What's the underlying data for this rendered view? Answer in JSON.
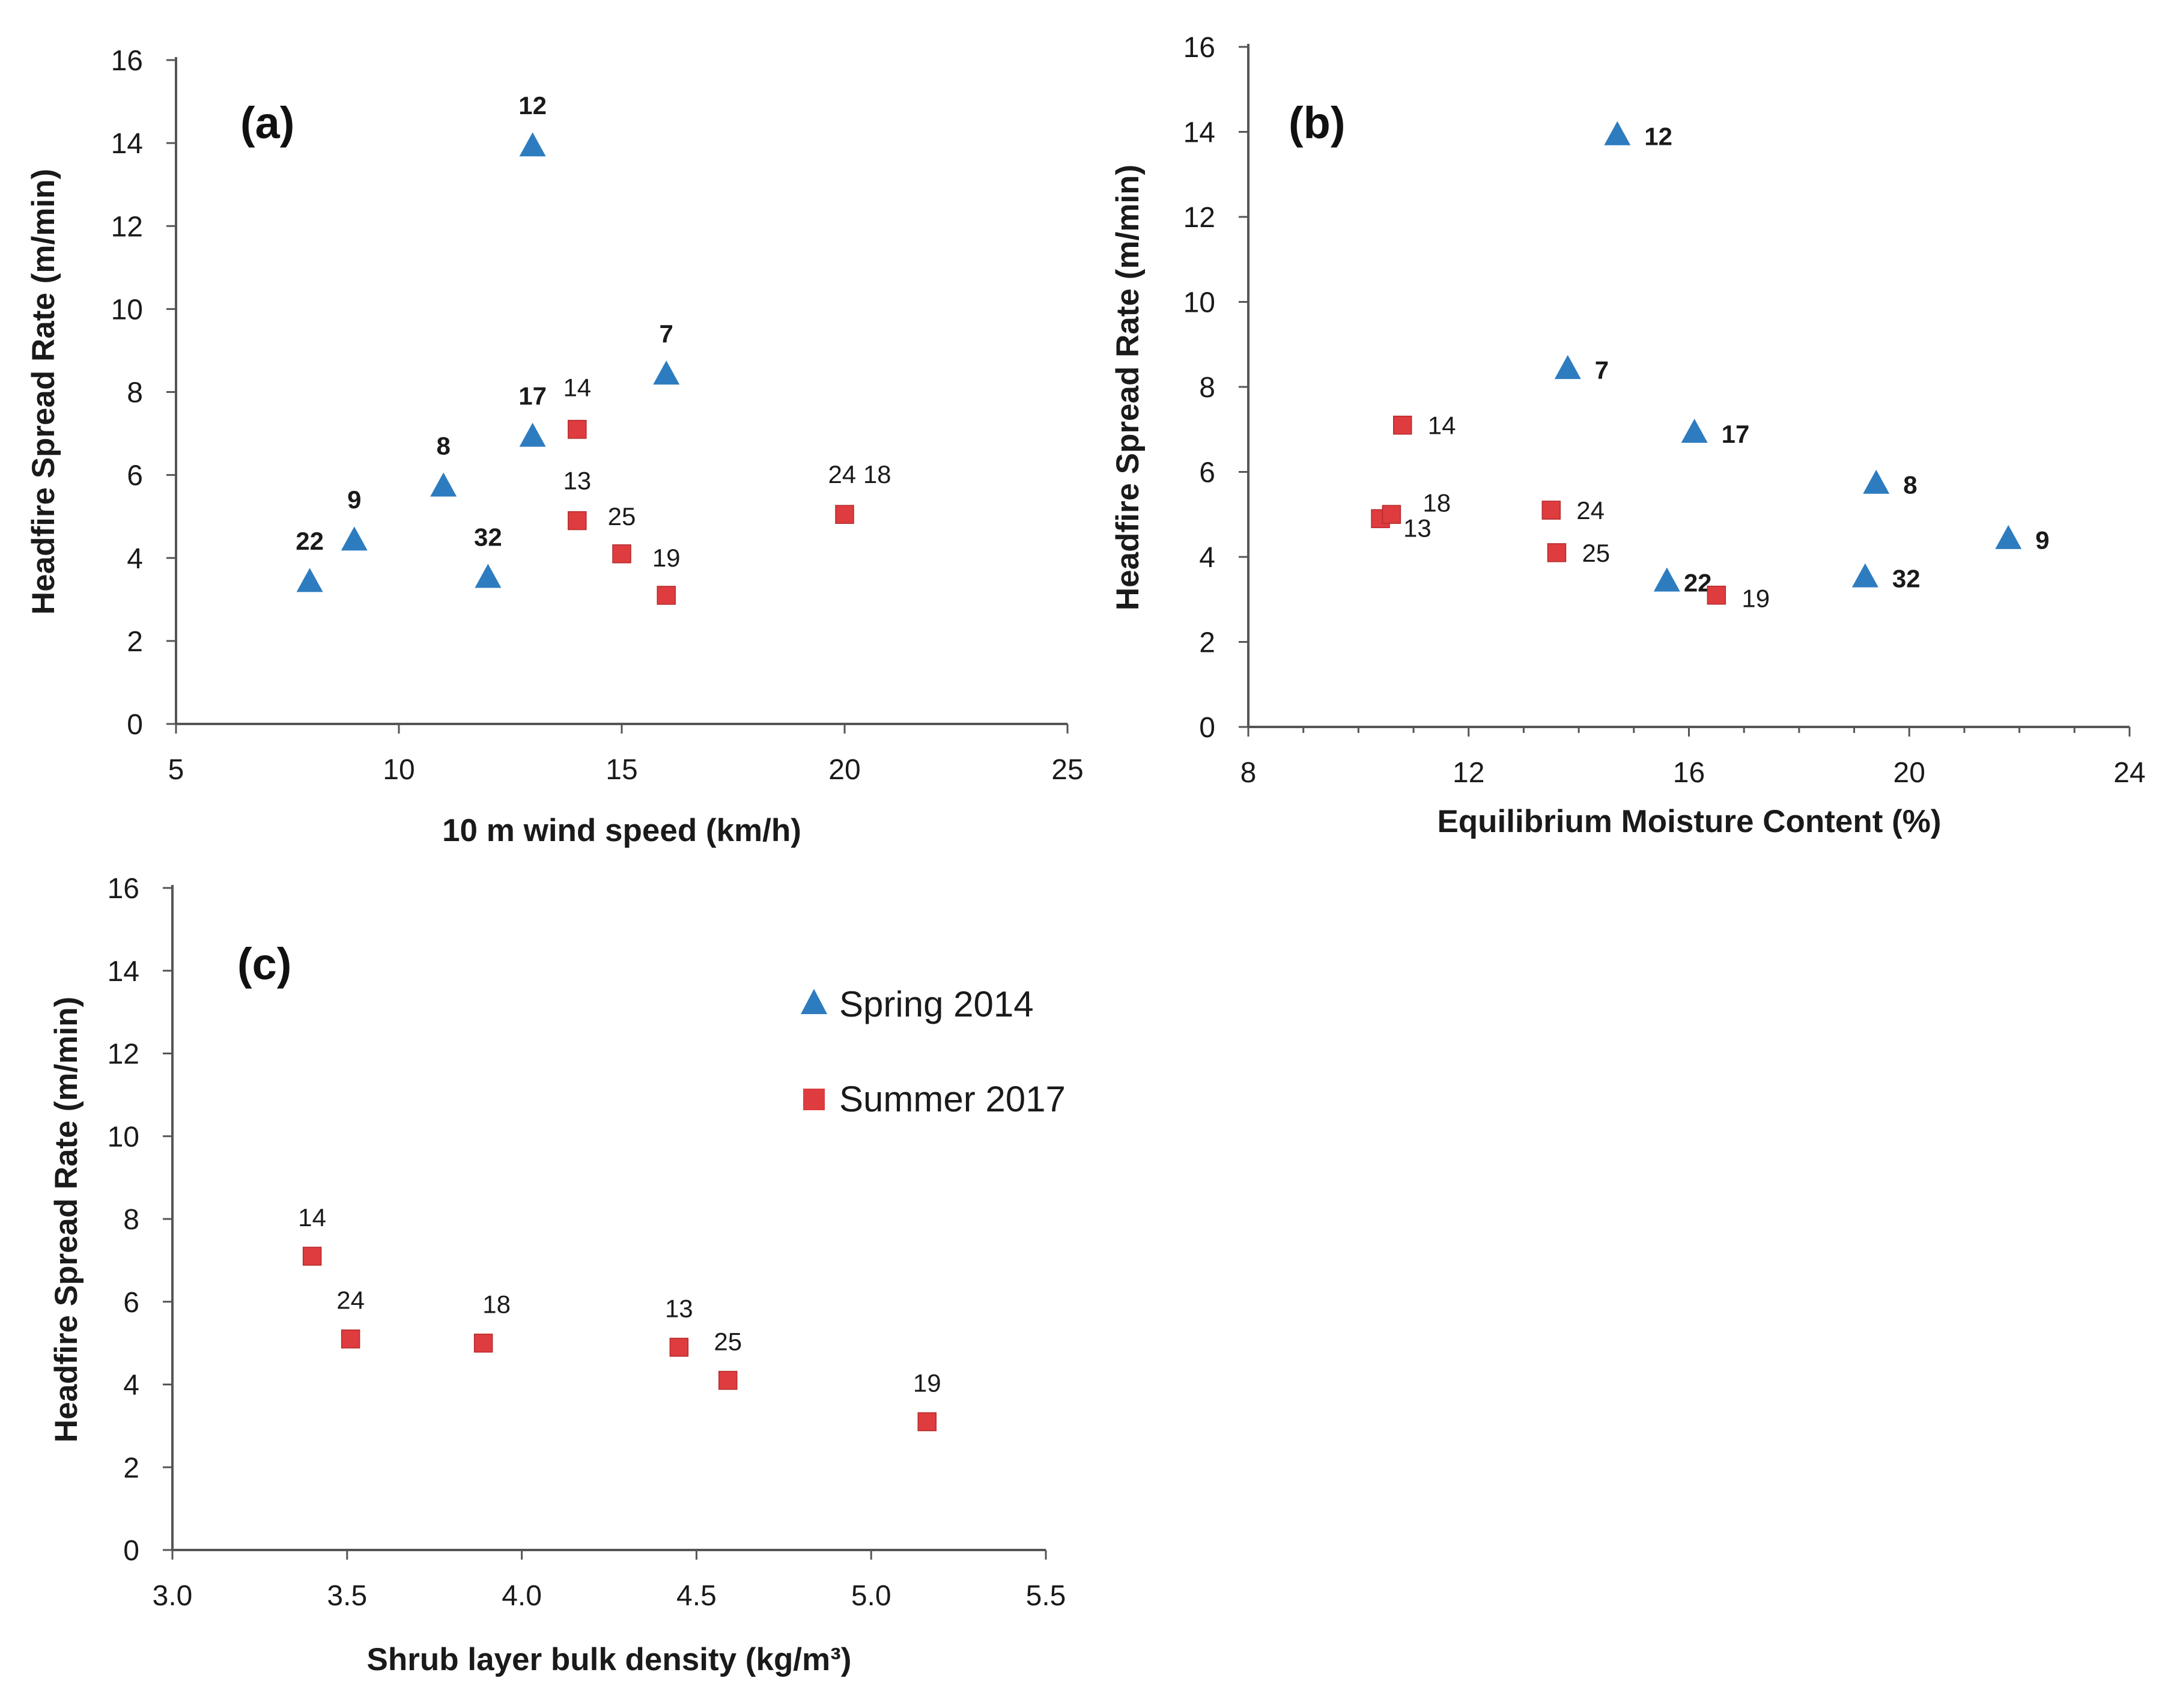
{
  "colors": {
    "spring": "#2E7CC0",
    "summer": "#DE3C3E",
    "axis": "#555555"
  },
  "legend": [
    {
      "name": "Spring 2014",
      "marker": "triangle",
      "color": "#2E7CC0"
    },
    {
      "name": "Summer 2017",
      "marker": "square",
      "color": "#DE3C3E"
    }
  ],
  "chart_data": [
    {
      "type": "scatter",
      "panel": "(a)",
      "xlabel": "10 m wind speed (km/h)",
      "ylabel": "Headfire Spread Rate  (m/min)",
      "xlim": [
        5,
        25
      ],
      "ylim": [
        0,
        16
      ],
      "xticks": [
        5,
        10,
        15,
        20,
        25
      ],
      "xticklabels": [
        "5",
        "10",
        "15",
        "20",
        "25"
      ],
      "yticks": [
        0,
        2,
        4,
        6,
        8,
        10,
        12,
        14,
        16
      ],
      "yticklabels": [
        "0",
        "2",
        "4",
        "6",
        "8",
        "10",
        "12",
        "14",
        "16"
      ],
      "series": [
        {
          "name": "Spring 2014",
          "marker": "triangle",
          "points": [
            {
              "x": 8,
              "y": 3.4,
              "label": "22"
            },
            {
              "x": 9,
              "y": 4.4,
              "label": "9"
            },
            {
              "x": 11,
              "y": 5.7,
              "label": "8"
            },
            {
              "x": 12,
              "y": 3.5,
              "label": "32"
            },
            {
              "x": 13,
              "y": 13.9,
              "label": "12"
            },
            {
              "x": 13,
              "y": 6.9,
              "label": "17"
            },
            {
              "x": 16,
              "y": 8.4,
              "label": "7"
            }
          ]
        },
        {
          "name": "Summer 2017",
          "marker": "square",
          "points": [
            {
              "x": 14,
              "y": 7.1,
              "label": "14"
            },
            {
              "x": 14,
              "y": 4.9,
              "label": "13"
            },
            {
              "x": 15,
              "y": 4.1,
              "label": "25"
            },
            {
              "x": 16,
              "y": 3.1,
              "label": "19"
            },
            {
              "x": 20,
              "y": 5.05,
              "label": "24 18"
            }
          ]
        }
      ]
    },
    {
      "type": "scatter",
      "panel": "(b)",
      "xlabel": "Equilibrium Moisture Content (%)",
      "ylabel": "Headfire Spread Rate (m/min)",
      "xlim": [
        8,
        24
      ],
      "ylim": [
        0,
        16
      ],
      "xticks": [
        8,
        12,
        16,
        20,
        24
      ],
      "xticklabels": [
        "8",
        "12",
        "16",
        "20",
        "24"
      ],
      "yticks": [
        0,
        2,
        4,
        6,
        8,
        10,
        12,
        14,
        16
      ],
      "yticklabels": [
        "0",
        "2",
        "4",
        "6",
        "8",
        "10",
        "12",
        "14",
        "16"
      ],
      "series": [
        {
          "name": "Spring 2014",
          "marker": "triangle",
          "points": [
            {
              "x": 14.7,
              "y": 13.9,
              "label": "12"
            },
            {
              "x": 13.8,
              "y": 8.4,
              "label": "7"
            },
            {
              "x": 16.1,
              "y": 6.9,
              "label": "17"
            },
            {
              "x": 19.4,
              "y": 5.7,
              "label": "8"
            },
            {
              "x": 21.8,
              "y": 4.4,
              "label": "9"
            },
            {
              "x": 15.6,
              "y": 3.4,
              "label": "22"
            },
            {
              "x": 19.2,
              "y": 3.5,
              "label": "32"
            }
          ]
        },
        {
          "name": "Summer 2017",
          "marker": "square",
          "points": [
            {
              "x": 10.8,
              "y": 7.1,
              "label": "14"
            },
            {
              "x": 10.4,
              "y": 4.9,
              "label": "13"
            },
            {
              "x": 10.6,
              "y": 5.0,
              "label": "18"
            },
            {
              "x": 13.5,
              "y": 5.1,
              "label": "24"
            },
            {
              "x": 13.6,
              "y": 4.1,
              "label": "25"
            },
            {
              "x": 16.5,
              "y": 3.1,
              "label": "19"
            }
          ]
        }
      ]
    },
    {
      "type": "scatter",
      "panel": "(c)",
      "xlabel": "Shrub layer bulk density (kg/m³)",
      "ylabel": "Headfire Spread Rate  (m/min)",
      "xlim": [
        3.0,
        5.5
      ],
      "ylim": [
        0,
        16
      ],
      "xticks": [
        3.0,
        3.5,
        4.0,
        4.5,
        5.0,
        5.5
      ],
      "xticklabels": [
        "3.0",
        "3.5",
        "4.0",
        "4.5",
        "5.0",
        "5.5"
      ],
      "yticks": [
        0,
        2,
        4,
        6,
        8,
        10,
        12,
        14,
        16
      ],
      "yticklabels": [
        "0",
        "2",
        "4",
        "6",
        "8",
        "10",
        "12",
        "14",
        "16"
      ],
      "series": [
        {
          "name": "Summer 2017",
          "marker": "square",
          "points": [
            {
              "x": 3.4,
              "y": 7.1,
              "label": "14"
            },
            {
              "x": 3.51,
              "y": 5.1,
              "label": "24"
            },
            {
              "x": 3.89,
              "y": 5.0,
              "label": "18"
            },
            {
              "x": 4.45,
              "y": 4.9,
              "label": "13"
            },
            {
              "x": 4.59,
              "y": 4.1,
              "label": "25"
            },
            {
              "x": 5.16,
              "y": 3.1,
              "label": "19"
            }
          ]
        }
      ]
    }
  ]
}
